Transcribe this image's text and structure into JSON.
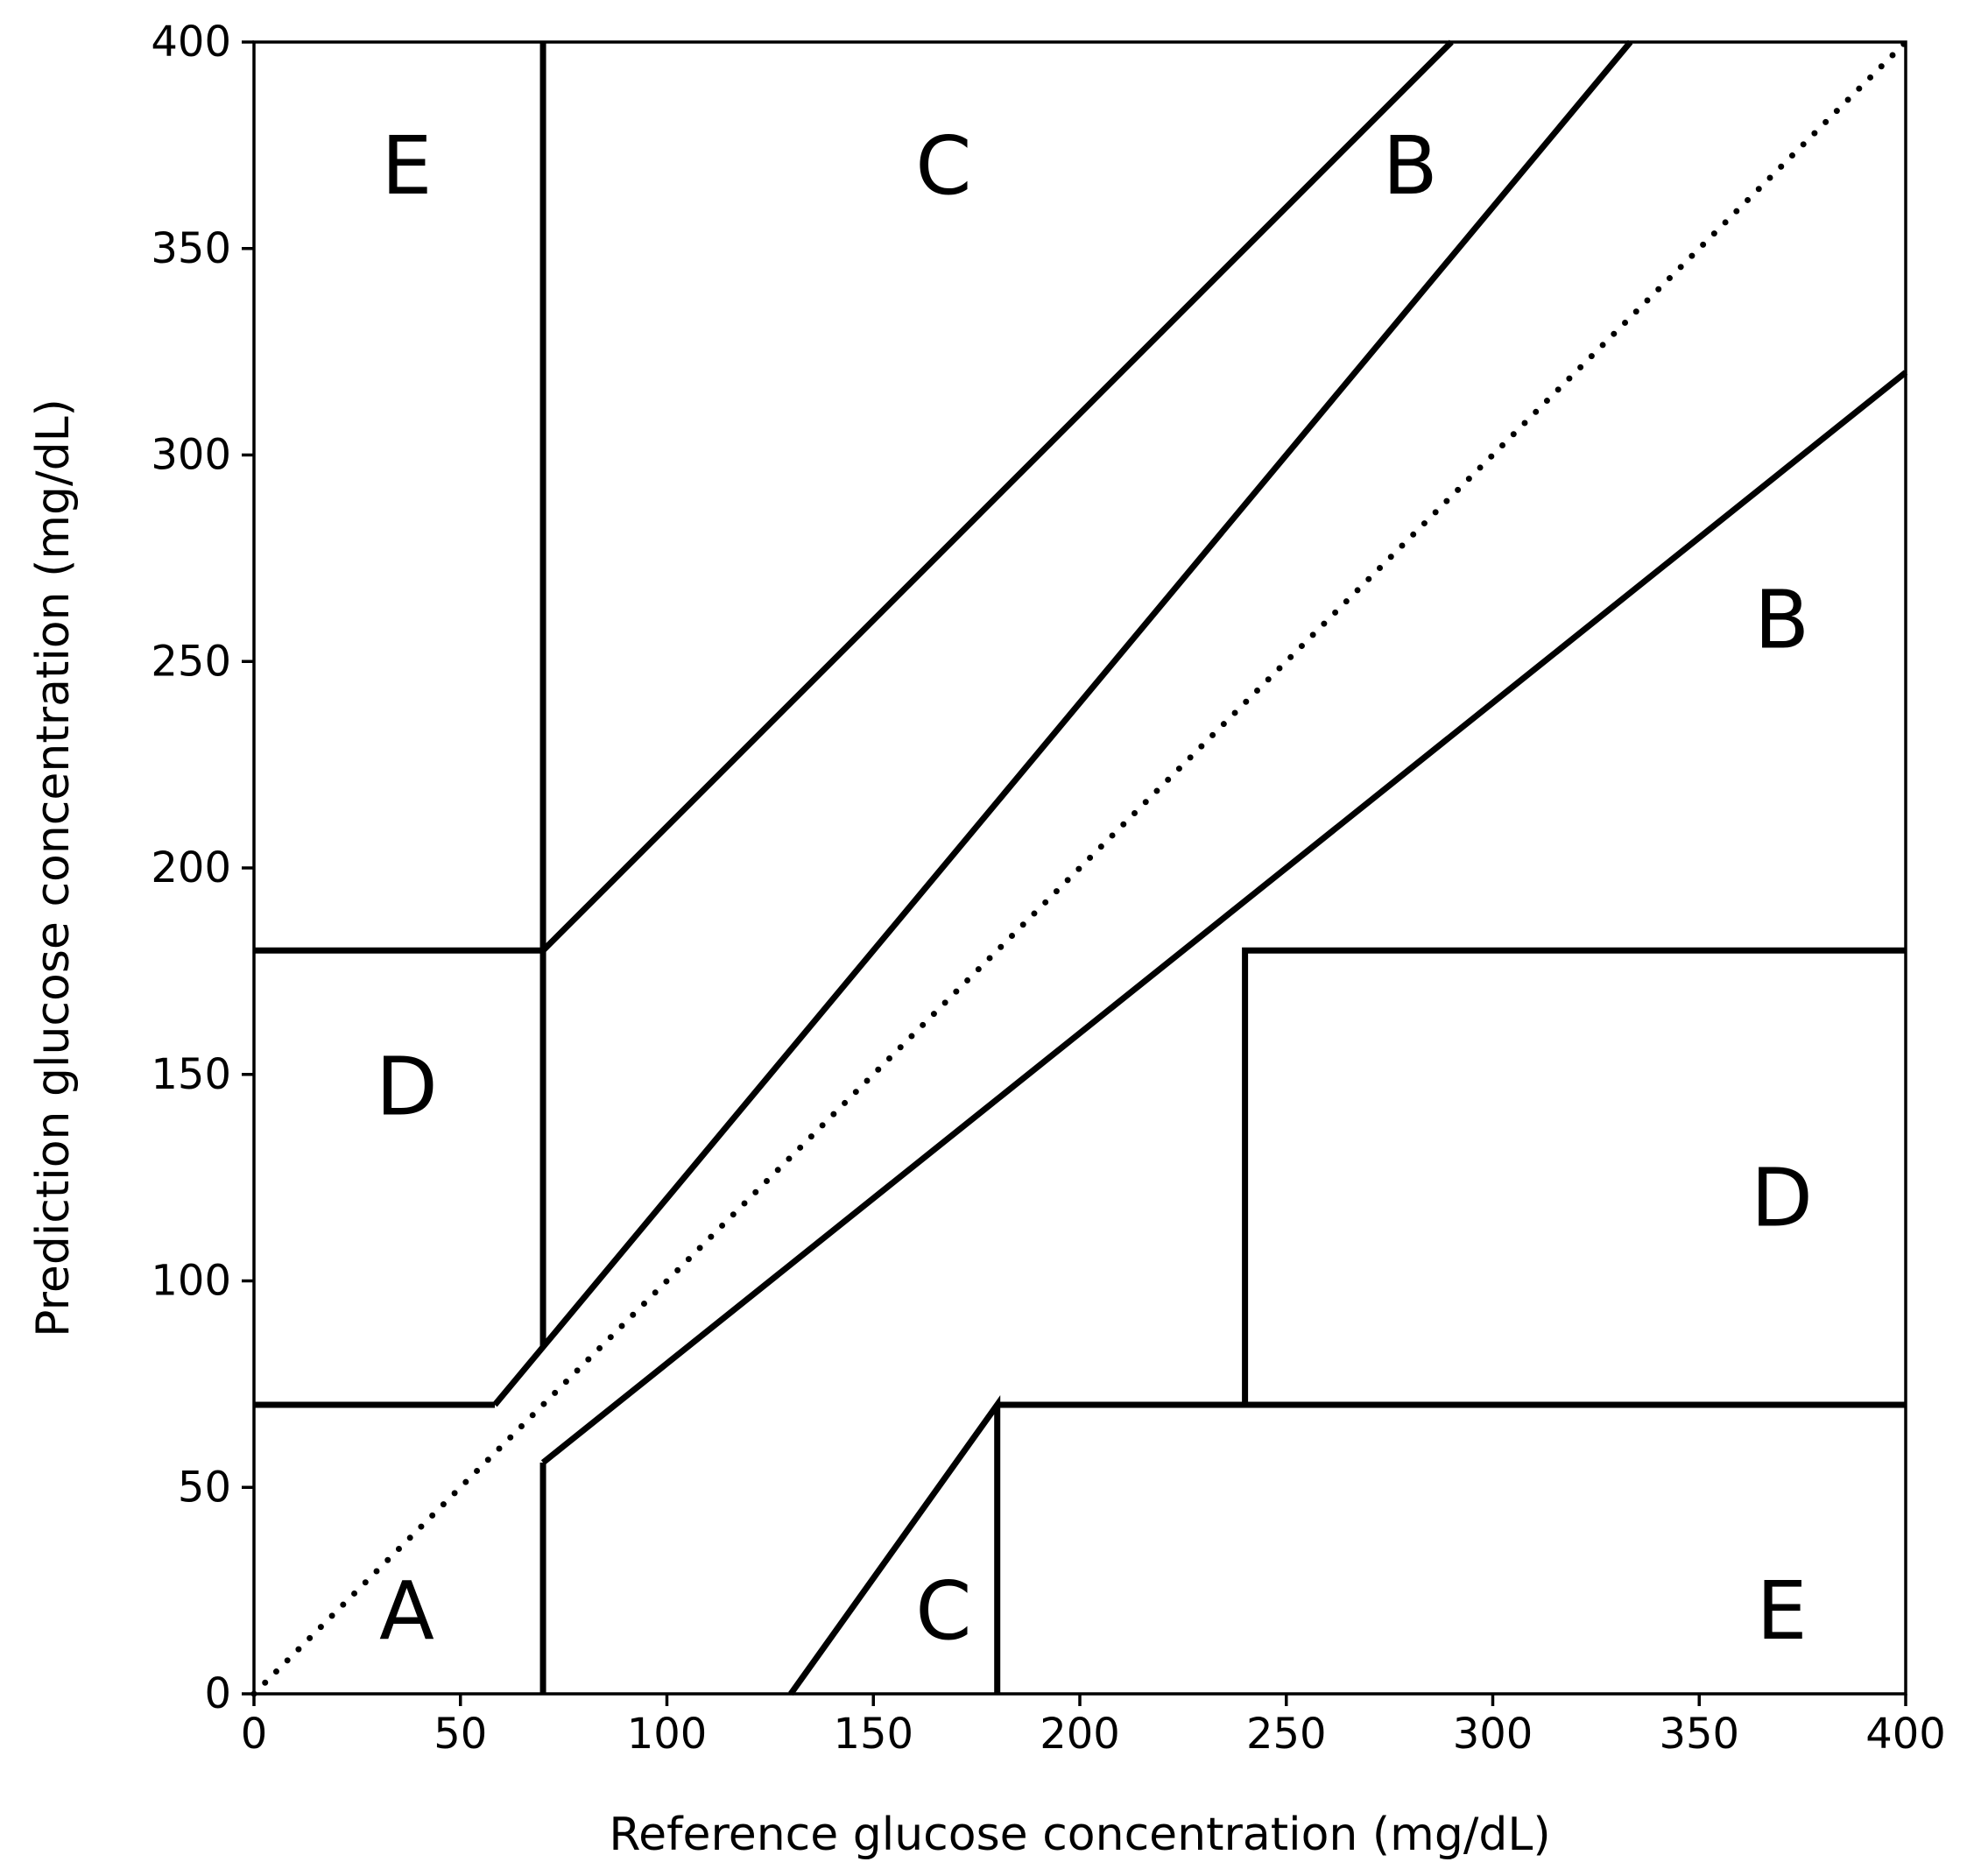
{
  "chart_data": {
    "type": "line",
    "title": "",
    "xlabel": "Reference glucose concentration (mg/dL)",
    "ylabel": "Prediction glucose concentration (mg/dL)",
    "xlim": [
      0,
      400
    ],
    "ylim": [
      0,
      400
    ],
    "x_ticks": [
      0,
      50,
      100,
      150,
      200,
      250,
      300,
      350,
      400
    ],
    "y_ticks": [
      0,
      50,
      100,
      150,
      200,
      250,
      300,
      350,
      400
    ],
    "grid": false,
    "line_color": "#000000",
    "identity_line": {
      "style": "dotted",
      "x": [
        0,
        400
      ],
      "y": [
        0,
        400
      ]
    },
    "zone_boundaries": [
      {
        "x": [
          70,
          70
        ],
        "y": [
          84,
          400
        ]
      },
      {
        "x": [
          0,
          70
        ],
        "y": [
          180,
          180
        ]
      },
      {
        "x": [
          70,
          290
        ],
        "y": [
          180,
          400
        ]
      },
      {
        "x": [
          0,
          58.33
        ],
        "y": [
          70,
          70
        ]
      },
      {
        "x": [
          58.33,
          70,
          333.33
        ],
        "y": [
          70,
          84,
          400
        ]
      },
      {
        "x": [
          70,
          70
        ],
        "y": [
          0,
          56
        ]
      },
      {
        "x": [
          70,
          400
        ],
        "y": [
          56,
          320
        ]
      },
      {
        "x": [
          130,
          180,
          180
        ],
        "y": [
          0,
          70,
          0
        ]
      },
      {
        "x": [
          180,
          400
        ],
        "y": [
          70,
          70
        ]
      },
      {
        "x": [
          240,
          240,
          400
        ],
        "y": [
          70,
          180,
          180
        ]
      }
    ],
    "zone_labels": [
      {
        "text": "A",
        "x": 37,
        "y": 20
      },
      {
        "text": "B",
        "x": 370,
        "y": 260
      },
      {
        "text": "B",
        "x": 280,
        "y": 370
      },
      {
        "text": "C",
        "x": 167,
        "y": 20
      },
      {
        "text": "C",
        "x": 167,
        "y": 370
      },
      {
        "text": "D",
        "x": 370,
        "y": 120
      },
      {
        "text": "D",
        "x": 37,
        "y": 147
      },
      {
        "text": "E",
        "x": 370,
        "y": 20
      },
      {
        "text": "E",
        "x": 37,
        "y": 370
      }
    ]
  }
}
